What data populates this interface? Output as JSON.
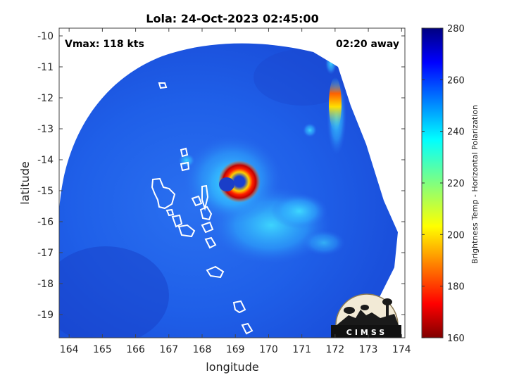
{
  "chart_data": {
    "type": "heatmap",
    "title": "Lola: 24-Oct-2023 02:45:00",
    "xlabel": "longitude",
    "ylabel": "latitude",
    "xlim": [
      163.7,
      174.1
    ],
    "ylim": [
      -19.75,
      -9.75
    ],
    "x_ticks": [
      "164",
      "165",
      "166",
      "167",
      "168",
      "169",
      "170",
      "171",
      "172",
      "173",
      "174"
    ],
    "y_ticks": [
      "-10",
      "-11",
      "-12",
      "-13",
      "-14",
      "-15",
      "-16",
      "-17",
      "-18",
      "-19"
    ],
    "annotations": {
      "vmax": "Vmax: 118 kts",
      "time_offset": "02:20 away"
    },
    "colorbar": {
      "label": "Brightness Temp - Horizontal Polarization",
      "min": 160,
      "max": 280,
      "ticks": [
        "160",
        "180",
        "200",
        "220",
        "240",
        "260",
        "280"
      ]
    },
    "storm_center": {
      "lon": 169.0,
      "lat": -14.9
    },
    "logo_text": "CIMSS"
  }
}
